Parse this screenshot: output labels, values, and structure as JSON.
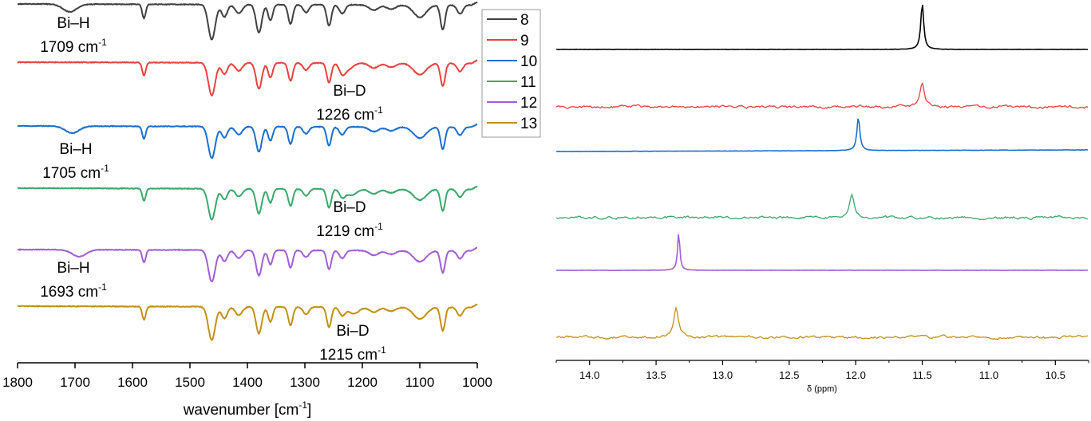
{
  "chart_data": [
    {
      "type": "line",
      "subtype": "IR spectra stacked",
      "xlabel_main": "wavenumber [cm",
      "xlabel_sup": "-1",
      "xlabel_tail": "]",
      "xlim": [
        1800,
        1000
      ],
      "x_ticks": [
        1800,
        1700,
        1600,
        1500,
        1400,
        1300,
        1200,
        1100,
        1000
      ],
      "legend_placement": "right",
      "series": [
        {
          "name": "8",
          "color": "#404040",
          "hydride": "H"
        },
        {
          "name": "9",
          "color": "#e8413f",
          "hydride": "D"
        },
        {
          "name": "10",
          "color": "#1a6fce",
          "hydride": "H"
        },
        {
          "name": "11",
          "color": "#3aa86a",
          "hydride": "D"
        },
        {
          "name": "12",
          "color": "#a15ed6",
          "hydride": "H"
        },
        {
          "name": "13",
          "color": "#c39014",
          "hydride": "D"
        }
      ],
      "annotations": [
        {
          "label": "Bi–H",
          "value": "1709 cm",
          "sup": "-1",
          "wavenumber": 1709
        },
        {
          "label": "Bi–D",
          "value": "1226 cm",
          "sup": "-1",
          "wavenumber": 1226
        },
        {
          "label": "Bi–H",
          "value": "1705 cm",
          "sup": "-1",
          "wavenumber": 1705
        },
        {
          "label": "Bi–D",
          "value": "1219 cm",
          "sup": "-1",
          "wavenumber": 1219
        },
        {
          "label": "Bi–H",
          "value": "1693 cm",
          "sup": "-1",
          "wavenumber": 1693
        },
        {
          "label": "Bi–D",
          "value": "1215 cm",
          "sup": "-1",
          "wavenumber": 1215
        }
      ]
    },
    {
      "type": "line",
      "subtype": "NMR spectra stacked",
      "xlabel": "δ (ppm)",
      "xlim": [
        14.25,
        10.25
      ],
      "x_ticks": [
        "14.0",
        "13.5",
        "13.0",
        "12.5",
        "12.0",
        "11.5",
        "11.0",
        "10.5"
      ],
      "series": [
        {
          "name": "8",
          "color": "#000000",
          "peak_ppm": 11.5,
          "noise": false
        },
        {
          "name": "9",
          "color": "#e8413f",
          "peak_ppm": 11.5,
          "noise": true
        },
        {
          "name": "10",
          "color": "#1a6fce",
          "peak_ppm": 11.98,
          "noise": false
        },
        {
          "name": "11",
          "color": "#3aa86a",
          "peak_ppm": 12.03,
          "noise": true
        },
        {
          "name": "12",
          "color": "#a15ed6",
          "peak_ppm": 13.33,
          "noise": false
        },
        {
          "name": "13",
          "color": "#c39014",
          "peak_ppm": 13.35,
          "noise": true
        }
      ]
    }
  ]
}
